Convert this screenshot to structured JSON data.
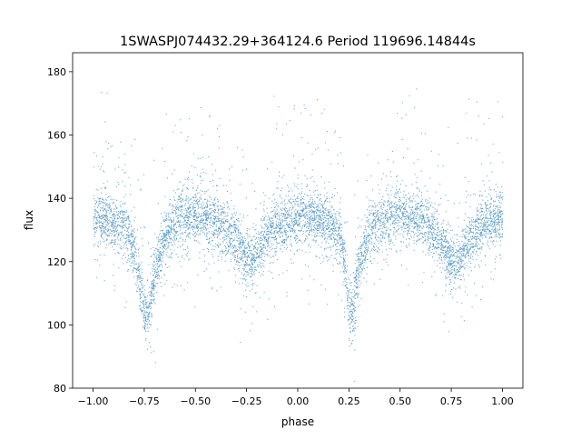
{
  "chart_data": {
    "type": "scatter",
    "title": "1SWASPJ074432.29+364124.6 Period 119696.14844s",
    "xlabel": "phase",
    "ylabel": "flux",
    "xlim": [
      -1.1,
      1.1
    ],
    "ylim": [
      80,
      186
    ],
    "xticks": [
      -1.0,
      -0.75,
      -0.5,
      -0.25,
      0.0,
      0.25,
      0.5,
      0.75,
      1.0
    ],
    "xtick_labels": [
      "−1.00",
      "−0.75",
      "−0.50",
      "−0.25",
      "0.00",
      "0.25",
      "0.50",
      "0.75",
      "1.00"
    ],
    "yticks": [
      80,
      100,
      120,
      140,
      160,
      180
    ],
    "ytick_labels": [
      "80",
      "100",
      "120",
      "140",
      "160",
      "180"
    ],
    "grid": false,
    "legend": "none",
    "point_color": "#1f77b4",
    "light_curve_profile": {
      "phase": [
        -1.0,
        -0.95,
        -0.9,
        -0.85,
        -0.8,
        -0.77,
        -0.75,
        -0.73,
        -0.7,
        -0.65,
        -0.6,
        -0.5,
        -0.4,
        -0.33,
        -0.28,
        -0.25,
        -0.22,
        -0.17,
        -0.1,
        0.0,
        0.1,
        0.15,
        0.2,
        0.23,
        0.25,
        0.27,
        0.3,
        0.35,
        0.4,
        0.5,
        0.6,
        0.67,
        0.72,
        0.75,
        0.78,
        0.83,
        0.9,
        1.0
      ],
      "flux": [
        134,
        134,
        133,
        131,
        124,
        112,
        103,
        104,
        116,
        128,
        133,
        136,
        133,
        129,
        124,
        120,
        121,
        127,
        132,
        134,
        134,
        133,
        129,
        118,
        104,
        105,
        120,
        130,
        133,
        136,
        133,
        129,
        124,
        120,
        121,
        127,
        132,
        134
      ]
    }
  }
}
